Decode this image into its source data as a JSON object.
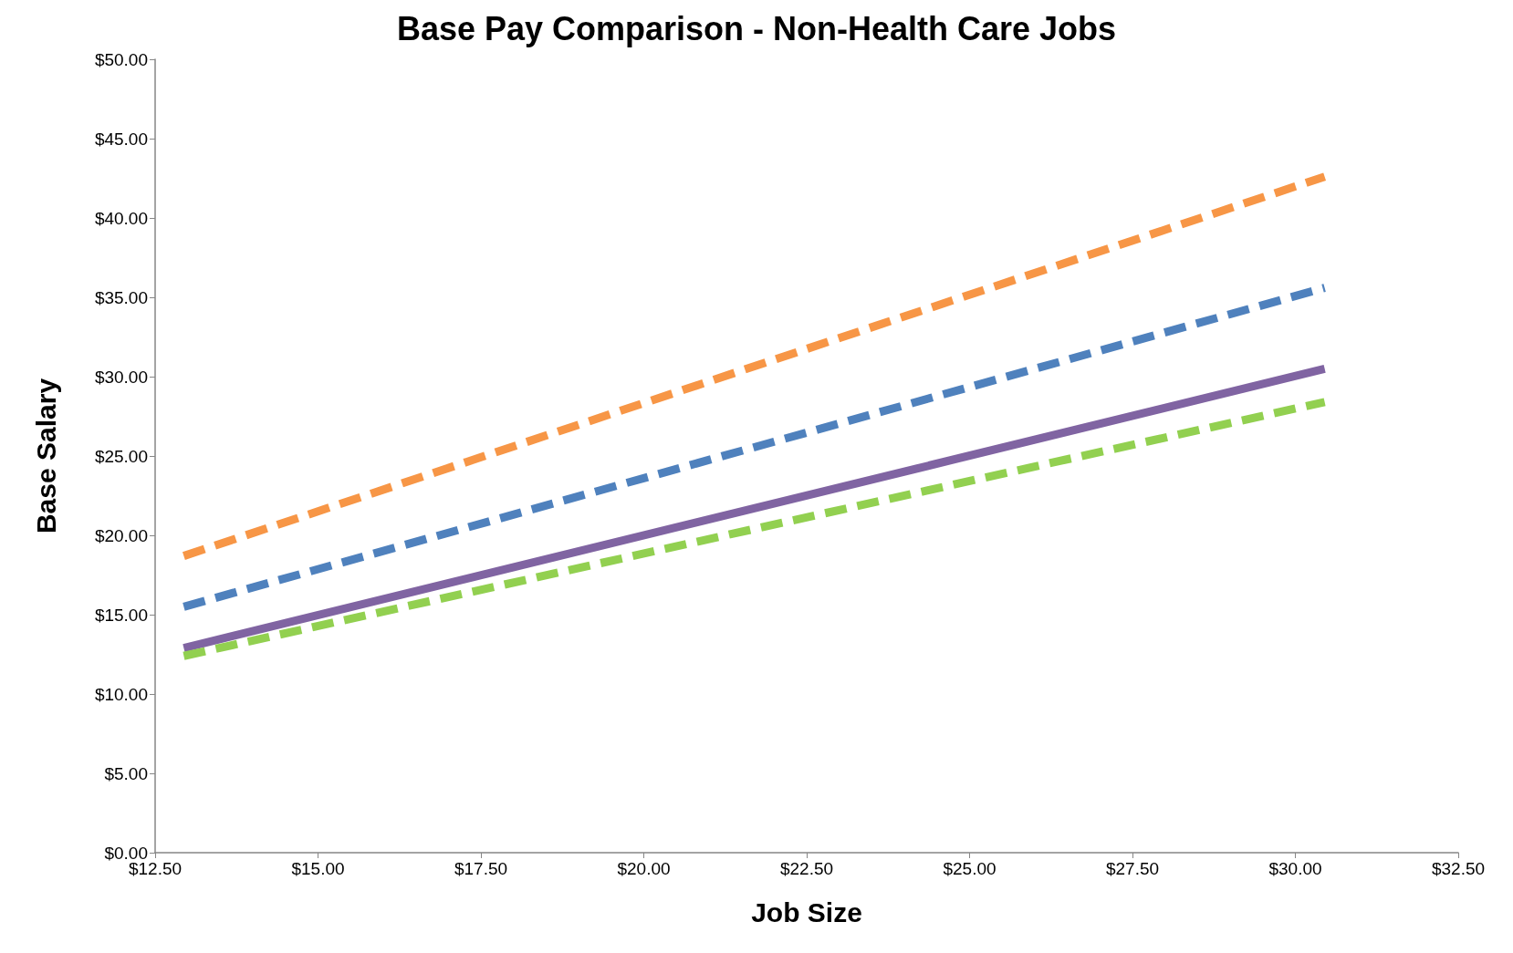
{
  "chart_data": {
    "type": "line",
    "title": "Base Pay Comparison - Non-Health Care Jobs",
    "xlabel": "Job Size",
    "ylabel": "Base Salary",
    "x": [
      12.94,
      30.45
    ],
    "xlim": [
      12.5,
      32.5
    ],
    "xticks": [
      {
        "value": 12.5,
        "label": "$12.50"
      },
      {
        "value": 15,
        "label": "$15.00"
      },
      {
        "value": 17.5,
        "label": "$17.50"
      },
      {
        "value": 20,
        "label": "$20.00"
      },
      {
        "value": 22.5,
        "label": "$22.50"
      },
      {
        "value": 25,
        "label": "$25.00"
      },
      {
        "value": 27.5,
        "label": "$27.50"
      },
      {
        "value": 30,
        "label": "$30.00"
      },
      {
        "value": 32.5,
        "label": "$32.50"
      }
    ],
    "ylim": [
      0,
      50
    ],
    "yticks": [
      {
        "value": 0,
        "label": "$0.00"
      },
      {
        "value": 5,
        "label": "$5.00"
      },
      {
        "value": 10,
        "label": "$10.00"
      },
      {
        "value": 15,
        "label": "$15.00"
      },
      {
        "value": 20,
        "label": "$20.00"
      },
      {
        "value": 25,
        "label": "$25.00"
      },
      {
        "value": 30,
        "label": "$30.00"
      },
      {
        "value": 35,
        "label": "$35.00"
      },
      {
        "value": 40,
        "label": "$40.00"
      },
      {
        "value": 45,
        "label": "$45.00"
      },
      {
        "value": 50,
        "label": "$50.00"
      }
    ],
    "grid": false,
    "marker": "none",
    "series": [
      {
        "color": "#f79646",
        "line_style": "dashed",
        "values": [
          18.7,
          42.6
        ]
      },
      {
        "color": "#4f81bd",
        "line_style": "dashed",
        "values": [
          15.5,
          35.6
        ]
      },
      {
        "color": "#8064a2",
        "line_style": "solid",
        "values": [
          12.9,
          30.5
        ]
      },
      {
        "color": "#92d050",
        "line_style": "dashed",
        "values": [
          12.4,
          28.4
        ]
      }
    ]
  }
}
